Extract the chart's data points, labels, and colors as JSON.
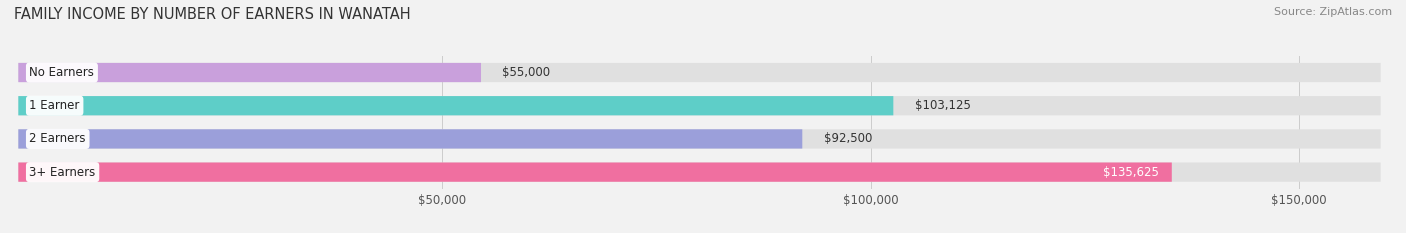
{
  "title": "FAMILY INCOME BY NUMBER OF EARNERS IN WANATAH",
  "source": "Source: ZipAtlas.com",
  "categories": [
    "No Earners",
    "1 Earner",
    "2 Earners",
    "3+ Earners"
  ],
  "values": [
    55000,
    103125,
    92500,
    135625
  ],
  "bar_colors": [
    "#c9a0dc",
    "#5ecec8",
    "#9b9fda",
    "#f06fa0"
  ],
  "label_colors": [
    "#555555",
    "#555555",
    "#555555",
    "#ffffff"
  ],
  "value_labels": [
    "$55,000",
    "$103,125",
    "$92,500",
    "$135,625"
  ],
  "xlim": [
    0,
    160000
  ],
  "xticks": [
    50000,
    100000,
    150000
  ],
  "xtick_labels": [
    "$50,000",
    "$100,000",
    "$150,000"
  ],
  "background_color": "#f2f2f2",
  "bar_bg_color": "#e0e0e0",
  "bar_height": 0.58,
  "title_fontsize": 10.5,
  "source_fontsize": 8,
  "label_fontsize": 8.5,
  "value_fontsize": 8.5,
  "tick_fontsize": 8.5
}
